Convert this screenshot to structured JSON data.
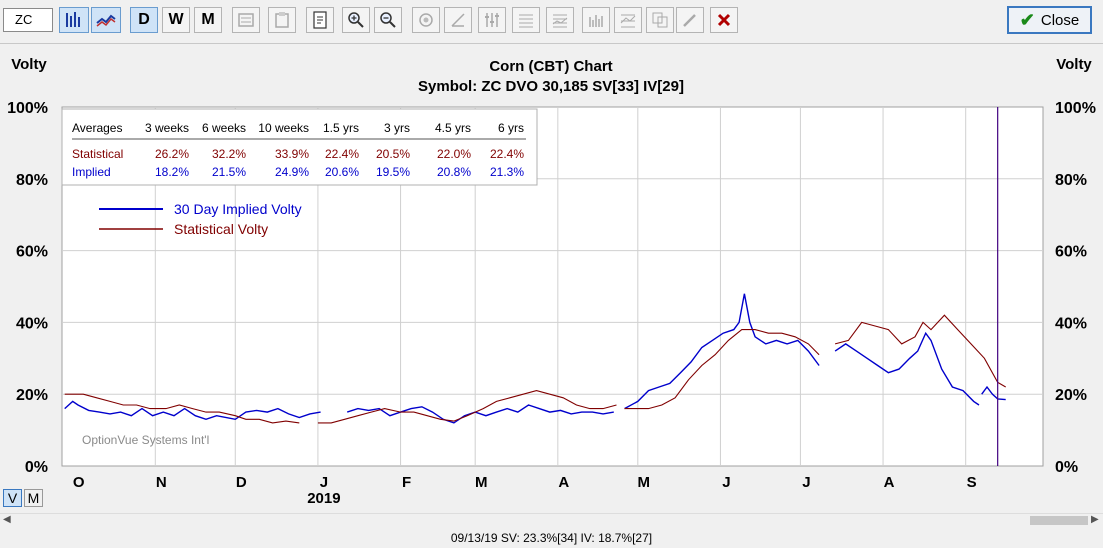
{
  "toolbar": {
    "symbol_value": "ZC",
    "day_label": "D",
    "week_label": "W",
    "month_label": "M",
    "close_label": "Close"
  },
  "view_toggle": {
    "v_label": "V",
    "m_label": "M"
  },
  "status_text": "09/13/19  SV: 23.3%[34]  IV: 18.7%[27]",
  "watermark": "OptionVue Systems Int'l",
  "colors": {
    "implied": "#0000cc",
    "statistical": "#800000",
    "grid": "#d0d0d0",
    "cursor": "#400080"
  },
  "averages_table": {
    "headers": [
      "Averages",
      "3 weeks",
      "6 weeks",
      "10 weeks",
      "1.5 yrs",
      "3 yrs",
      "4.5 yrs",
      "6 yrs"
    ],
    "rows": [
      {
        "label": "Statistical",
        "values": [
          "26.2%",
          "32.2%",
          "33.9%",
          "22.4%",
          "20.5%",
          "22.0%",
          "22.4%"
        ]
      },
      {
        "label": "Implied",
        "values": [
          "18.2%",
          "21.5%",
          "24.9%",
          "20.6%",
          "19.5%",
          "20.8%",
          "21.3%"
        ]
      }
    ]
  },
  "chart_data": {
    "type": "line",
    "title": "Corn (CBT) Chart",
    "subtitle": "Symbol: ZC  DVO 30,185  SV[33]  IV[29]",
    "ylabel_left": "Volty",
    "ylabel_right": "Volty",
    "ylim": [
      0,
      100
    ],
    "yticks": [
      "0%",
      "20%",
      "40%",
      "60%",
      "80%",
      "100%"
    ],
    "month_labels": [
      "O",
      "N",
      "D",
      "J",
      "F",
      "M",
      "A",
      "M",
      "J",
      "J",
      "A",
      "S"
    ],
    "year_label": "2019",
    "legend": [
      "30 Day Implied Volty",
      "Statistical Volty"
    ],
    "grid": true,
    "x_start": "2018-09-27",
    "x_end": "2019-09-30",
    "cursor_date": "2019-09-13",
    "series": [
      {
        "name": "30 Day Implied Volty",
        "points": [
          [
            "2018-09-28",
            16
          ],
          [
            "2018-10-01",
            18
          ],
          [
            "2018-10-03",
            17
          ],
          [
            "2018-10-07",
            15.5
          ],
          [
            "2018-10-11",
            15
          ],
          [
            "2018-10-15",
            14.5
          ],
          [
            "2018-10-19",
            15
          ],
          [
            "2018-10-23",
            14
          ],
          [
            "2018-10-27",
            16
          ],
          [
            "2018-10-31",
            14
          ],
          [
            "2018-11-04",
            15
          ],
          [
            "2018-11-08",
            14
          ],
          [
            "2018-11-12",
            16
          ],
          [
            "2018-11-16",
            14
          ],
          [
            "2018-11-20",
            13
          ],
          [
            "2018-11-24",
            14
          ],
          [
            "2018-12-01",
            13
          ],
          [
            "2018-12-05",
            15
          ],
          [
            "2018-12-09",
            15.5
          ],
          [
            "2018-12-13",
            15
          ],
          [
            "2018-12-17",
            16
          ],
          [
            "2018-12-21",
            14.5
          ],
          [
            "2018-12-25",
            13.5
          ],
          [
            "2018-12-29",
            14.5
          ],
          [
            "2019-01-02",
            15
          ],
          null,
          [
            "2019-01-12",
            15
          ],
          [
            "2019-01-16",
            16
          ],
          [
            "2019-01-20",
            15.5
          ],
          [
            "2019-01-24",
            16
          ],
          [
            "2019-01-28",
            14
          ],
          [
            "2019-02-01",
            15
          ],
          [
            "2019-02-05",
            16
          ],
          [
            "2019-02-09",
            16.5
          ],
          [
            "2019-02-13",
            15
          ],
          [
            "2019-02-17",
            13
          ],
          [
            "2019-02-21",
            12
          ],
          [
            "2019-02-25",
            14
          ],
          [
            "2019-03-01",
            15
          ],
          [
            "2019-03-05",
            14
          ],
          [
            "2019-03-09",
            15
          ],
          [
            "2019-03-13",
            16
          ],
          [
            "2019-03-17",
            15
          ],
          [
            "2019-03-21",
            17
          ],
          [
            "2019-03-25",
            16
          ],
          [
            "2019-03-29",
            15
          ],
          [
            "2019-04-02",
            15.5
          ],
          [
            "2019-04-06",
            14.5
          ],
          [
            "2019-04-10",
            15
          ],
          [
            "2019-04-14",
            15
          ],
          [
            "2019-04-18",
            14.5
          ],
          [
            "2019-04-22",
            15
          ],
          null,
          [
            "2019-04-26",
            16
          ],
          [
            "2019-05-01",
            18
          ],
          [
            "2019-05-05",
            21
          ],
          [
            "2019-05-09",
            22
          ],
          [
            "2019-05-13",
            23
          ],
          [
            "2019-05-17",
            26
          ],
          [
            "2019-05-21",
            29
          ],
          [
            "2019-05-25",
            33
          ],
          [
            "2019-05-29",
            35
          ],
          [
            "2019-06-02",
            37
          ],
          [
            "2019-06-06",
            38
          ],
          [
            "2019-06-08",
            40
          ],
          [
            "2019-06-10",
            48
          ],
          [
            "2019-06-12",
            40
          ],
          [
            "2019-06-14",
            36
          ],
          [
            "2019-06-18",
            34
          ],
          [
            "2019-06-22",
            35
          ],
          [
            "2019-06-26",
            34
          ],
          [
            "2019-06-30",
            35
          ],
          [
            "2019-07-04",
            32
          ],
          [
            "2019-07-08",
            28
          ],
          null,
          [
            "2019-07-14",
            32
          ],
          [
            "2019-07-18",
            34
          ],
          [
            "2019-07-22",
            32
          ],
          [
            "2019-07-26",
            30
          ],
          [
            "2019-07-30",
            28
          ],
          [
            "2019-08-03",
            26
          ],
          [
            "2019-08-07",
            27
          ],
          [
            "2019-08-11",
            30
          ],
          [
            "2019-08-14",
            32
          ],
          [
            "2019-08-17",
            37
          ],
          [
            "2019-08-19",
            35
          ],
          [
            "2019-08-23",
            27
          ],
          [
            "2019-08-27",
            22
          ],
          [
            "2019-08-31",
            21
          ],
          [
            "2019-09-04",
            18
          ],
          [
            "2019-09-06",
            17
          ],
          null,
          [
            "2019-09-07",
            20
          ],
          [
            "2019-09-09",
            22
          ],
          [
            "2019-09-11",
            20
          ],
          [
            "2019-09-13",
            18.7
          ],
          [
            "2019-09-16",
            18.5
          ]
        ]
      },
      {
        "name": "Statistical Volty",
        "points": [
          [
            "2018-09-28",
            20
          ],
          [
            "2018-10-05",
            20
          ],
          [
            "2018-10-10",
            19
          ],
          [
            "2018-10-15",
            18
          ],
          [
            "2018-10-20",
            17
          ],
          [
            "2018-10-25",
            17
          ],
          [
            "2018-10-30",
            16
          ],
          [
            "2018-11-05",
            16
          ],
          [
            "2018-11-10",
            17
          ],
          [
            "2018-11-15",
            16
          ],
          [
            "2018-11-20",
            15
          ],
          [
            "2018-11-25",
            15
          ],
          [
            "2018-12-01",
            14
          ],
          [
            "2018-12-05",
            13
          ],
          [
            "2018-12-10",
            13
          ],
          [
            "2018-12-15",
            12
          ],
          [
            "2018-12-20",
            12.5
          ],
          [
            "2018-12-25",
            12
          ],
          null,
          [
            "2019-01-01",
            12
          ],
          [
            "2019-01-06",
            12
          ],
          [
            "2019-01-11",
            13
          ],
          [
            "2019-01-16",
            14
          ],
          [
            "2019-01-21",
            15
          ],
          [
            "2019-01-26",
            16
          ],
          [
            "2019-02-01",
            15
          ],
          [
            "2019-02-06",
            15
          ],
          [
            "2019-02-11",
            14
          ],
          [
            "2019-02-16",
            13
          ],
          [
            "2019-02-21",
            12.5
          ],
          [
            "2019-02-26",
            14
          ],
          [
            "2019-03-04",
            16
          ],
          [
            "2019-03-09",
            18
          ],
          [
            "2019-03-14",
            19
          ],
          [
            "2019-03-19",
            20
          ],
          [
            "2019-03-24",
            21
          ],
          [
            "2019-03-29",
            20
          ],
          [
            "2019-04-03",
            19
          ],
          [
            "2019-04-08",
            17
          ],
          [
            "2019-04-13",
            16
          ],
          [
            "2019-04-18",
            16
          ],
          [
            "2019-04-23",
            17
          ],
          null,
          [
            "2019-04-26",
            16
          ],
          [
            "2019-05-05",
            16
          ],
          [
            "2019-05-10",
            17
          ],
          [
            "2019-05-15",
            19
          ],
          [
            "2019-05-20",
            24
          ],
          [
            "2019-05-25",
            28
          ],
          [
            "2019-05-30",
            31
          ],
          [
            "2019-06-04",
            35
          ],
          [
            "2019-06-09",
            38
          ],
          [
            "2019-06-14",
            38
          ],
          [
            "2019-06-19",
            37
          ],
          [
            "2019-06-24",
            37
          ],
          [
            "2019-06-29",
            36
          ],
          [
            "2019-07-04",
            34
          ],
          [
            "2019-07-08",
            31
          ],
          null,
          [
            "2019-07-14",
            34
          ],
          [
            "2019-07-19",
            35
          ],
          [
            "2019-07-24",
            40
          ],
          [
            "2019-07-29",
            39
          ],
          [
            "2019-08-03",
            38
          ],
          [
            "2019-08-08",
            34
          ],
          [
            "2019-08-13",
            36
          ],
          [
            "2019-08-16",
            40
          ],
          [
            "2019-08-19",
            38
          ],
          [
            "2019-08-24",
            42
          ],
          [
            "2019-08-29",
            38
          ],
          [
            "2019-09-03",
            34
          ],
          [
            "2019-09-08",
            30
          ],
          [
            "2019-09-13",
            23.3
          ],
          [
            "2019-09-16",
            22
          ]
        ]
      }
    ]
  }
}
